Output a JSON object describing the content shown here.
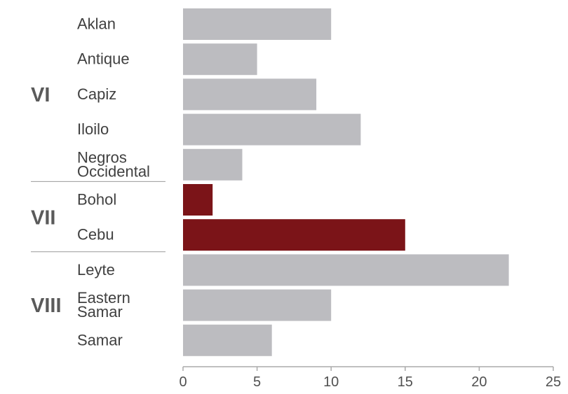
{
  "chart_data": {
    "type": "bar",
    "orientation": "horizontal",
    "xlim": [
      0,
      25
    ],
    "x_ticks": [
      "0",
      "5",
      "10",
      "15",
      "20",
      "25"
    ],
    "groups": [
      {
        "label": "VI",
        "categories": [
          [
            "Aklan"
          ],
          [
            "Antique"
          ],
          [
            "Capiz"
          ],
          [
            "Iloilo"
          ],
          [
            "Negros",
            "Occidental"
          ]
        ]
      },
      {
        "label": "VII",
        "categories": [
          [
            "Bohol"
          ],
          [
            "Cebu"
          ]
        ]
      },
      {
        "label": "VIII",
        "categories": [
          [
            "Leyte"
          ],
          [
            "Eastern",
            "Samar"
          ],
          [
            "Samar"
          ]
        ]
      }
    ],
    "categories": [
      "Aklan",
      "Antique",
      "Capiz",
      "Iloilo",
      "Negros Occidental",
      "Bohol",
      "Cebu",
      "Leyte",
      "Eastern Samar",
      "Samar"
    ],
    "values": [
      10,
      5,
      9,
      12,
      4,
      2,
      15,
      22,
      10,
      6
    ],
    "highlighted": [
      "Bohol",
      "Cebu"
    ],
    "colors": {
      "default": "#bcbcc0",
      "highlight": "#7b1418",
      "separator": "#999999",
      "axis": "#aaaaaa"
    }
  }
}
